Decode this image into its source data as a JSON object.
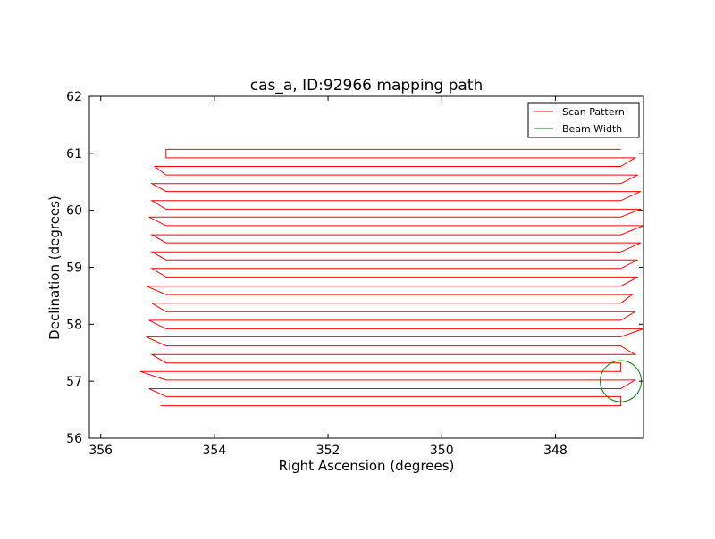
{
  "chart_data": {
    "type": "line",
    "title": "cas_a, ID:92966 mapping path",
    "xlabel": "Right Ascension (degrees)",
    "ylabel": "Declination (degrees)",
    "xlim": [
      356.2,
      346.45
    ],
    "ylim": [
      56,
      62
    ],
    "x_inverted": true,
    "xticks": [
      356,
      354,
      352,
      350,
      348
    ],
    "yticks": [
      56,
      57,
      58,
      59,
      60,
      61,
      62
    ],
    "grid": false,
    "legend_position": "top-right",
    "series": [
      {
        "name": "Scan Pattern",
        "color": "#ff0000",
        "scan_rows": [
          {
            "y": 56.57,
            "ra_left": 354.95,
            "ra_right": 346.85
          },
          {
            "y": 56.73,
            "ra_left": 354.85,
            "ra_right": 346.85
          },
          {
            "y": 56.87,
            "ra_left": 355.15,
            "ra_right": 346.85
          },
          {
            "y": 57.02,
            "ra_left": 354.85,
            "ra_right": 346.6
          },
          {
            "y": 57.17,
            "ra_left": 355.3,
            "ra_right": 346.85
          },
          {
            "y": 57.32,
            "ra_left": 354.85,
            "ra_right": 346.85
          },
          {
            "y": 57.47,
            "ra_left": 355.1,
            "ra_right": 346.6
          },
          {
            "y": 57.62,
            "ra_left": 354.85,
            "ra_right": 346.85
          },
          {
            "y": 57.78,
            "ra_left": 355.2,
            "ra_right": 346.85
          },
          {
            "y": 57.92,
            "ra_left": 354.85,
            "ra_right": 346.45
          },
          {
            "y": 58.07,
            "ra_left": 355.15,
            "ra_right": 346.85
          },
          {
            "y": 58.22,
            "ra_left": 354.85,
            "ra_right": 346.6
          },
          {
            "y": 58.37,
            "ra_left": 355.1,
            "ra_right": 346.85
          },
          {
            "y": 58.52,
            "ra_left": 354.85,
            "ra_right": 346.65
          },
          {
            "y": 58.67,
            "ra_left": 355.2,
            "ra_right": 346.85
          },
          {
            "y": 58.83,
            "ra_left": 354.85,
            "ra_right": 346.55
          },
          {
            "y": 58.98,
            "ra_left": 355.1,
            "ra_right": 346.85
          },
          {
            "y": 59.13,
            "ra_left": 354.85,
            "ra_right": 346.55
          },
          {
            "y": 59.27,
            "ra_left": 355.1,
            "ra_right": 346.85
          },
          {
            "y": 59.43,
            "ra_left": 354.85,
            "ra_right": 346.5
          },
          {
            "y": 59.57,
            "ra_left": 355.1,
            "ra_right": 346.85
          },
          {
            "y": 59.73,
            "ra_left": 354.85,
            "ra_right": 346.45
          },
          {
            "y": 59.88,
            "ra_left": 355.15,
            "ra_right": 346.85
          },
          {
            "y": 60.02,
            "ra_left": 354.85,
            "ra_right": 346.5
          },
          {
            "y": 60.17,
            "ra_left": 355.1,
            "ra_right": 346.85
          },
          {
            "y": 60.33,
            "ra_left": 354.85,
            "ra_right": 346.5
          },
          {
            "y": 60.47,
            "ra_left": 355.1,
            "ra_right": 346.85
          },
          {
            "y": 60.62,
            "ra_left": 354.85,
            "ra_right": 346.55
          },
          {
            "y": 60.77,
            "ra_left": 355.05,
            "ra_right": 346.85
          },
          {
            "y": 60.92,
            "ra_left": 354.85,
            "ra_right": 346.6
          },
          {
            "y": 61.07,
            "ra_left": 354.85,
            "ra_right": 346.85
          }
        ]
      },
      {
        "name": "Beam Width",
        "color": "#008000",
        "center_ra": 346.85,
        "center_dec": 57.0,
        "radius_deg": 0.36
      }
    ]
  }
}
